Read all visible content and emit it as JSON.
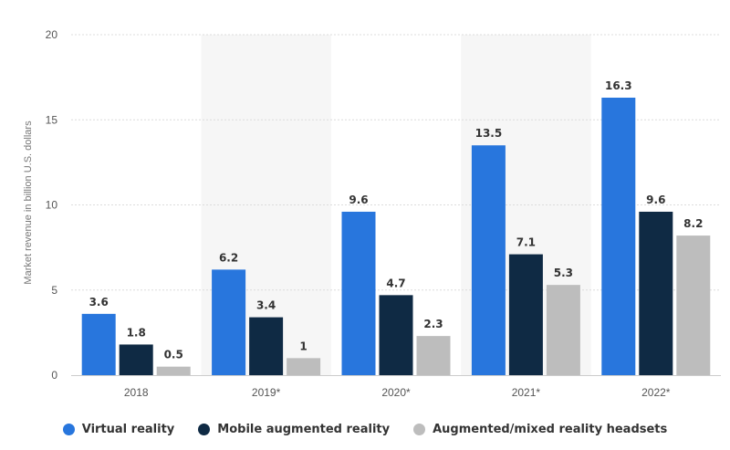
{
  "chart_data": {
    "type": "bar",
    "categories": [
      "2018",
      "2019*",
      "2020*",
      "2021*",
      "2022*"
    ],
    "series": [
      {
        "name": "Virtual reality",
        "values": [
          3.6,
          6.2,
          9.6,
          13.5,
          16.3
        ],
        "color": "#2876DD"
      },
      {
        "name": "Mobile augmented reality",
        "values": [
          1.8,
          3.4,
          4.7,
          7.1,
          9.6
        ],
        "color": "#0F2A44"
      },
      {
        "name": "Augmented/mixed reality headsets",
        "values": [
          0.5,
          1,
          2.3,
          5.3,
          8.2
        ],
        "color": "#BDBDBD"
      }
    ],
    "ylabel": "Market revenue in billion U.S. dollars",
    "ylim": [
      0,
      20
    ],
    "yticks": [
      "0",
      "5",
      "10",
      "15",
      "20"
    ],
    "grid": true,
    "legend_position": "bottom",
    "shaded_categories": [
      "2019*",
      "2021*"
    ]
  }
}
